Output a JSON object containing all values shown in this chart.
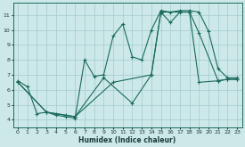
{
  "title": "",
  "xlabel": "Humidex (Indice chaleur)",
  "ylabel": "",
  "bg_color": "#cde8e8",
  "line_color": "#1a6b5a",
  "grid_color": "#aacfcf",
  "xlim": [
    -0.5,
    23.5
  ],
  "ylim": [
    3.5,
    11.8
  ],
  "xticks": [
    0,
    1,
    2,
    3,
    4,
    5,
    6,
    7,
    8,
    9,
    10,
    11,
    12,
    13,
    14,
    15,
    16,
    17,
    18,
    19,
    20,
    21,
    22,
    23
  ],
  "yticks": [
    4,
    5,
    6,
    7,
    8,
    9,
    10,
    11
  ],
  "lines": [
    {
      "x": [
        0,
        1,
        2,
        3,
        4,
        5,
        6,
        7,
        8,
        9,
        10,
        11,
        12,
        13,
        14,
        15,
        16,
        17,
        18,
        19,
        20,
        21,
        22,
        23
      ],
      "y": [
        6.6,
        6.2,
        4.4,
        4.5,
        4.3,
        4.2,
        4.1,
        8.0,
        6.9,
        7.0,
        9.6,
        10.4,
        8.2,
        8.0,
        10.0,
        11.3,
        11.2,
        11.3,
        11.3,
        11.2,
        9.9,
        7.4,
        6.8,
        6.8
      ]
    },
    {
      "x": [
        0,
        3,
        4,
        5,
        6,
        9,
        12,
        14,
        15,
        18,
        19,
        21,
        22,
        23
      ],
      "y": [
        6.5,
        4.5,
        4.4,
        4.3,
        4.2,
        6.8,
        5.1,
        7.0,
        11.2,
        11.2,
        6.5,
        6.6,
        6.7,
        6.7
      ]
    },
    {
      "x": [
        0,
        3,
        6,
        10,
        14,
        15,
        16,
        17,
        18,
        19,
        21,
        22,
        23
      ],
      "y": [
        6.5,
        4.5,
        4.2,
        6.5,
        7.0,
        11.2,
        10.5,
        11.2,
        11.2,
        9.8,
        6.6,
        6.7,
        6.7
      ]
    }
  ]
}
